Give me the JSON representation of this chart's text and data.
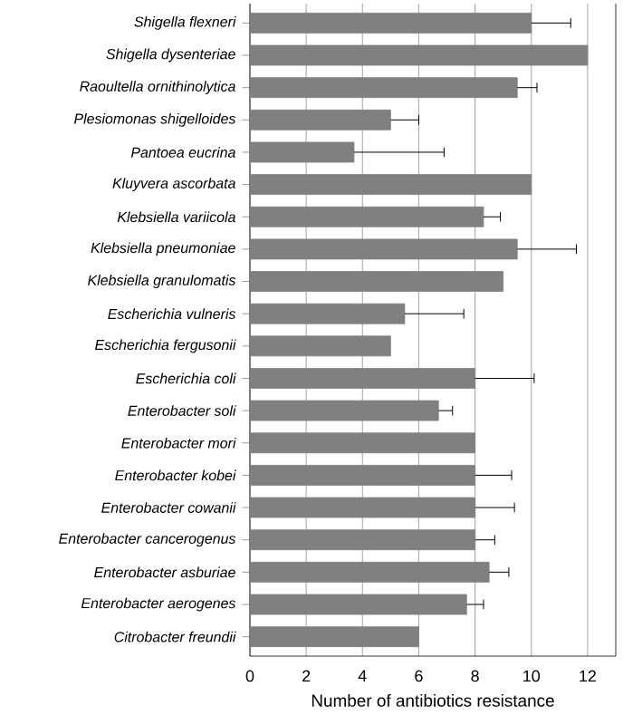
{
  "chart_data": {
    "type": "bar",
    "orientation": "horizontal",
    "xlabel": "Number of antibiotics resistance",
    "categories": [
      "Shigella flexneri",
      "Shigella dysenteriae",
      "Raoultella ornithinolytica",
      "Plesiomonas shigelloides",
      "Pantoea eucrina",
      "Kluyvera ascorbata",
      "Klebsiella variicola",
      "Klebsiella pneumoniae",
      "Klebsiella granulomatis",
      "Escherichia vulneris",
      "Escherichia fergusonii",
      "Escherichia coli",
      "Enterobacter soli",
      "Enterobacter mori",
      "Enterobacter kobei",
      "Enterobacter cowanii",
      "Enterobacter cancerogenus",
      "Enterobacter asburiae",
      "Enterobacter aerogenes",
      "Citrobacter freundii"
    ],
    "values": [
      10,
      12,
      9.5,
      5,
      3.7,
      10,
      8.3,
      9.5,
      9,
      5.5,
      5,
      8,
      6.7,
      8,
      8,
      8,
      8,
      8.5,
      7.7,
      6
    ],
    "errors": [
      [
        10,
        11.4
      ],
      null,
      [
        9.5,
        10.2
      ],
      [
        5,
        6
      ],
      [
        3.7,
        6.9
      ],
      null,
      [
        8.3,
        8.9
      ],
      [
        9.5,
        11.6
      ],
      null,
      [
        5.5,
        7.6
      ],
      null,
      [
        8,
        10.1
      ],
      [
        6.7,
        7.2
      ],
      null,
      [
        8,
        9.3
      ],
      [
        8,
        9.4
      ],
      [
        8,
        8.7
      ],
      [
        8.5,
        9.2
      ],
      [
        7.7,
        8.3
      ],
      null
    ],
    "color": "#808080",
    "xlim": [
      0,
      13
    ],
    "xticks": [
      0,
      2,
      4,
      6,
      8,
      10,
      12
    ],
    "grid": "x"
  }
}
